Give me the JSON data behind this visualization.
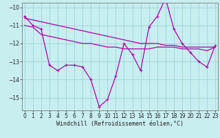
{
  "xlabel": "Windchill (Refroidissement éolien,°C)",
  "x": [
    0,
    1,
    2,
    3,
    4,
    5,
    6,
    7,
    8,
    9,
    10,
    11,
    12,
    13,
    14,
    15,
    16,
    17,
    18,
    19,
    20,
    21,
    22,
    23
  ],
  "line1": [
    -10.5,
    -11.0,
    -11.2,
    -13.2,
    -13.5,
    -13.2,
    -13.2,
    -13.3,
    -14.0,
    -15.5,
    -15.1,
    -13.8,
    -12.0,
    -12.6,
    -13.5,
    -11.1,
    -10.5,
    -9.5,
    -11.2,
    -12.0,
    -12.5,
    -13.0,
    -13.3,
    -12.1
  ],
  "line2": [
    -10.6,
    -10.7,
    -10.8,
    -10.9,
    -11.0,
    -11.1,
    -11.2,
    -11.3,
    -11.4,
    -11.5,
    -11.6,
    -11.7,
    -11.8,
    -11.9,
    -12.0,
    -12.0,
    -12.0,
    -12.1,
    -12.1,
    -12.2,
    -12.2,
    -12.2,
    -12.2,
    -12.2
  ],
  "line3": [
    -11.0,
    -11.1,
    -11.5,
    -11.6,
    -11.7,
    -11.8,
    -11.9,
    -12.0,
    -12.0,
    -12.1,
    -12.2,
    -12.2,
    -12.3,
    -12.3,
    -12.3,
    -12.3,
    -12.2,
    -12.2,
    -12.2,
    -12.3,
    -12.3,
    -12.3,
    -12.4,
    -12.2
  ],
  "line_color": "#aa00aa",
  "bg_color": "#c8eef0",
  "grid_color": "#a0d8dc",
  "ylim": [
    -15.7,
    -9.75
  ],
  "yticks": [
    -15,
    -14,
    -13,
    -12,
    -11,
    -10
  ],
  "xticks": [
    0,
    1,
    2,
    3,
    4,
    5,
    6,
    7,
    8,
    9,
    10,
    11,
    12,
    13,
    14,
    15,
    16,
    17,
    18,
    19,
    20,
    21,
    22,
    23
  ],
  "tick_fontsize": 5.5,
  "xlabel_fontsize": 6.0,
  "linewidth": 0.9,
  "markersize": 3.5,
  "markeredgewidth": 0.8
}
